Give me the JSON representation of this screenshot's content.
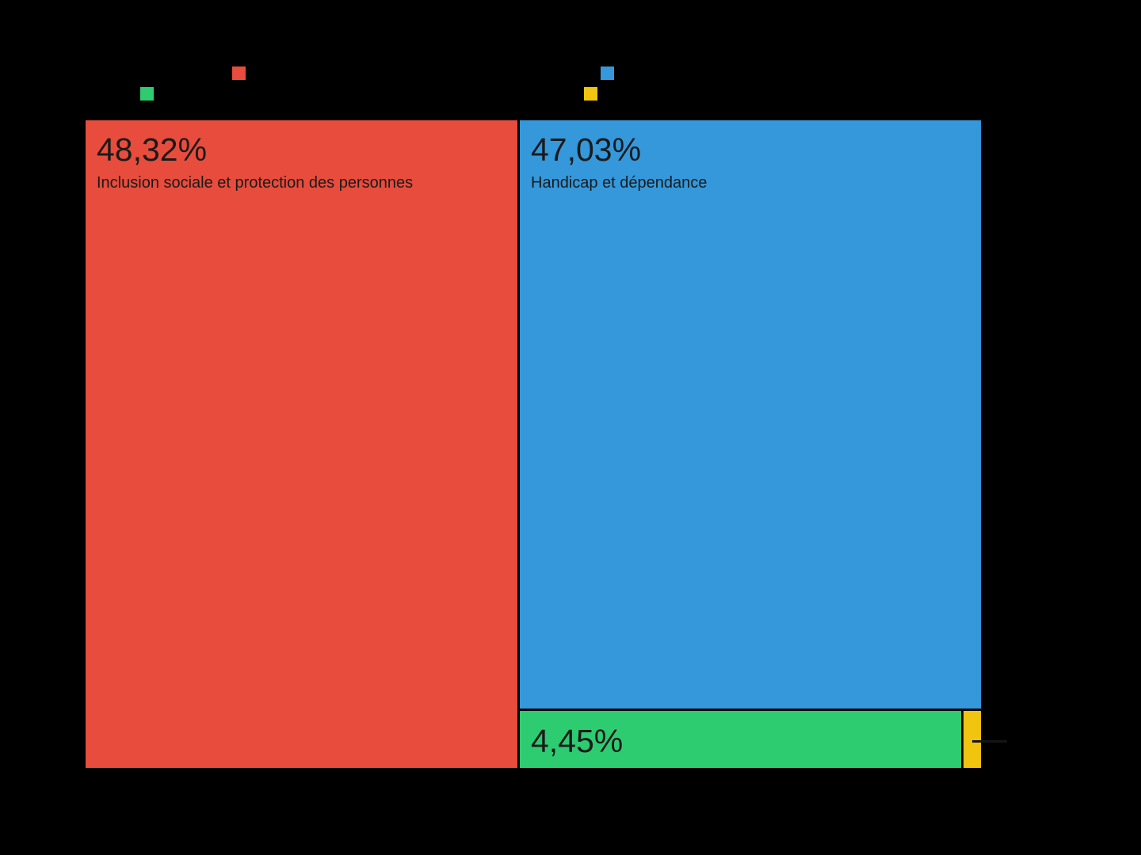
{
  "chart": {
    "background": "#000000",
    "text_color": "#1a1a1a"
  },
  "legend": {
    "position": "top",
    "labels_visible": false,
    "items": [
      {
        "id": "red-swatch",
        "color": "#e74c3c"
      },
      {
        "id": "blue-swatch",
        "color": "#3498db"
      },
      {
        "id": "green-swatch",
        "color": "#2ecc71"
      },
      {
        "id": "yellow-swatch",
        "color": "#f1c40f"
      }
    ]
  },
  "chart_data": {
    "type": "treemap",
    "title": "",
    "legend_position": "top",
    "background": "#000000",
    "slices": [
      {
        "category": "Inclusion sociale et protection des personnes",
        "percent": 48.32,
        "percent_label": "48,32%",
        "color": "#e74c3c"
      },
      {
        "category": "Handicap et dépendance",
        "percent": 47.03,
        "percent_label": "47,03%",
        "color": "#3498db"
      },
      {
        "category": "",
        "percent": 4.45,
        "percent_label": "4,45%",
        "color": "#2ecc71"
      },
      {
        "category": "",
        "percent": null,
        "percent_label": "",
        "color": "#f1c40f"
      }
    ]
  }
}
